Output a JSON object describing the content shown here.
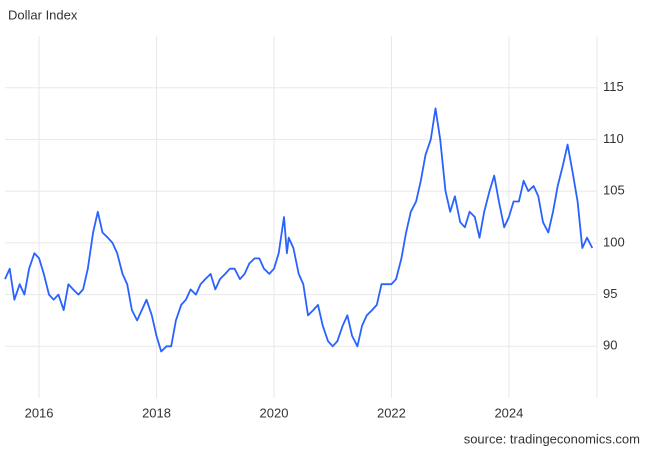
{
  "chart_data": {
    "type": "line",
    "title": "Dollar Index",
    "source": "source: tradingeconomics.com",
    "color": "#2962ff",
    "grid": true,
    "xlim": [
      2015.42,
      2025.5
    ],
    "xticks": [
      2016,
      2018,
      2020,
      2022,
      2024
    ],
    "ylim": [
      85,
      120
    ],
    "yticks": [
      90,
      95,
      100,
      105,
      110,
      115
    ],
    "x": [
      2015.42,
      2015.5,
      2015.58,
      2015.67,
      2015.75,
      2015.83,
      2015.92,
      2016.0,
      2016.08,
      2016.17,
      2016.25,
      2016.33,
      2016.42,
      2016.5,
      2016.58,
      2016.67,
      2016.75,
      2016.83,
      2016.92,
      2017.0,
      2017.08,
      2017.17,
      2017.25,
      2017.33,
      2017.42,
      2017.5,
      2017.58,
      2017.67,
      2017.75,
      2017.83,
      2017.92,
      2018.0,
      2018.08,
      2018.17,
      2018.25,
      2018.33,
      2018.42,
      2018.5,
      2018.58,
      2018.67,
      2018.75,
      2018.83,
      2018.92,
      2019.0,
      2019.08,
      2019.17,
      2019.25,
      2019.33,
      2019.42,
      2019.5,
      2019.58,
      2019.67,
      2019.75,
      2019.83,
      2019.92,
      2020.0,
      2020.08,
      2020.17,
      2020.22,
      2020.25,
      2020.33,
      2020.42,
      2020.5,
      2020.58,
      2020.67,
      2020.75,
      2020.83,
      2020.92,
      2021.0,
      2021.08,
      2021.17,
      2021.25,
      2021.33,
      2021.42,
      2021.5,
      2021.58,
      2021.67,
      2021.75,
      2021.83,
      2021.92,
      2022.0,
      2022.08,
      2022.17,
      2022.25,
      2022.33,
      2022.42,
      2022.5,
      2022.58,
      2022.67,
      2022.75,
      2022.83,
      2022.92,
      2023.0,
      2023.08,
      2023.17,
      2023.25,
      2023.33,
      2023.42,
      2023.5,
      2023.58,
      2023.67,
      2023.75,
      2023.83,
      2023.92,
      2024.0,
      2024.08,
      2024.17,
      2024.25,
      2024.33,
      2024.42,
      2024.5,
      2024.58,
      2024.67,
      2024.75,
      2024.83,
      2024.92,
      2025.0,
      2025.08,
      2025.17,
      2025.25,
      2025.33,
      2025.42
    ],
    "values": [
      96.5,
      97.5,
      94.5,
      96,
      95,
      97.5,
      99,
      98.5,
      97,
      95,
      94.5,
      95,
      93.5,
      96,
      95.5,
      95,
      95.5,
      97.5,
      101,
      103,
      101,
      100.5,
      100,
      99,
      97,
      96,
      93.5,
      92.5,
      93.5,
      94.5,
      93,
      91,
      89.5,
      90,
      90,
      92.5,
      94,
      94.5,
      95.5,
      95,
      96,
      96.5,
      97,
      95.5,
      96.5,
      97,
      97.5,
      97.5,
      96.5,
      97,
      98,
      98.5,
      98.5,
      97.5,
      97,
      97.5,
      99,
      102.5,
      99,
      100.5,
      99.5,
      97,
      96,
      93,
      93.5,
      94,
      92,
      90.5,
      90,
      90.5,
      92,
      93,
      91,
      90,
      92,
      93,
      93.5,
      94,
      96,
      96,
      96,
      96.5,
      98.5,
      101,
      103,
      104,
      106,
      108.5,
      110,
      113,
      110,
      105,
      103,
      104.5,
      102,
      101.5,
      103,
      102.5,
      100.5,
      103,
      105,
      106.5,
      104,
      101.5,
      102.5,
      104,
      104,
      106,
      105,
      105.5,
      104.5,
      102,
      101,
      103,
      105.5,
      107.5,
      109.5,
      107,
      104,
      99.5,
      100.5,
      99.5
    ]
  }
}
